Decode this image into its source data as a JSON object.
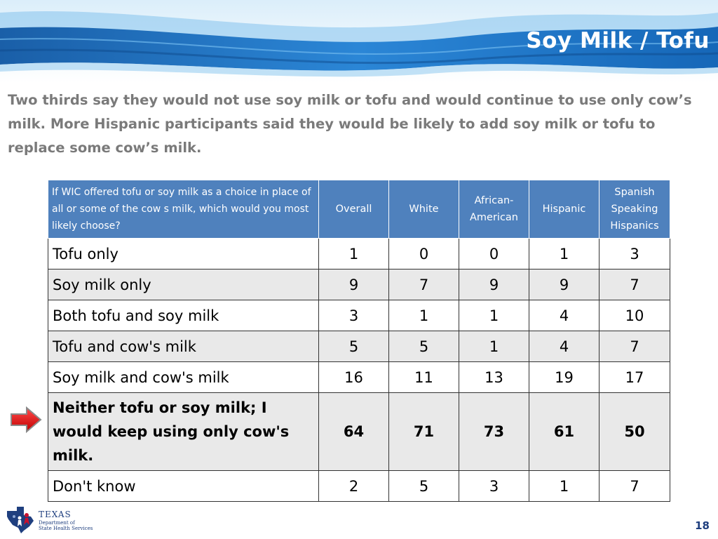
{
  "slide": {
    "title": "Soy Milk / Tofu",
    "intro": "Two thirds say they would not use soy milk or tofu and would continue to use only cow’s milk.  More Hispanic participants said they would be likely to add soy milk or tofu to replace some cow’s milk.",
    "page_number": "18"
  },
  "logo": {
    "name": "TEXAS",
    "subline1": "Department of",
    "subline2": "State Health Services"
  },
  "table": {
    "headers": [
      "If WIC offered tofu or soy milk as a choice in place of all or some of the cow s milk, which would you most likely choose?",
      "Overall",
      "White",
      "African-American",
      "Hispanic",
      "Spanish Speaking Hispanics"
    ],
    "rows": [
      {
        "label": "Tofu only",
        "values": [
          "1",
          "0",
          "0",
          "1",
          "3"
        ]
      },
      {
        "label": "Soy milk only",
        "values": [
          "9",
          "7",
          "9",
          "9",
          "7"
        ]
      },
      {
        "label": "Both tofu and soy milk",
        "values": [
          "3",
          "1",
          "1",
          "4",
          "10"
        ]
      },
      {
        "label": "Tofu and cow's milk",
        "values": [
          "5",
          "5",
          "1",
          "4",
          "7"
        ]
      },
      {
        "label": "Soy milk and cow's milk",
        "values": [
          "16",
          "11",
          "13",
          "19",
          "17"
        ]
      },
      {
        "label": "Neither tofu or soy milk; I would keep using only cow's milk.",
        "values": [
          "64",
          "71",
          "73",
          "61",
          "50"
        ]
      },
      {
        "label": "Don't know",
        "values": [
          "2",
          "5",
          "3",
          "1",
          "7"
        ]
      }
    ]
  },
  "colors": {
    "header_fill": "#4f81bd",
    "row_alt": "#e9e9e9",
    "intro_text": "#7a7a7a",
    "arrow": "#e02020"
  },
  "icons": {
    "highlight_marker": "right-arrow-icon",
    "logo": "texas-dshs-logo-icon"
  }
}
